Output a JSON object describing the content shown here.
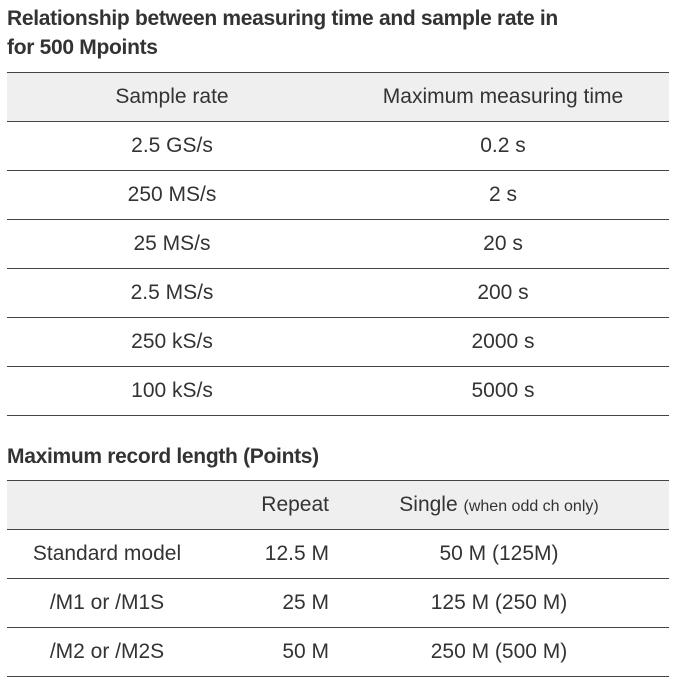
{
  "table1": {
    "title_line1": "Relationship between measuring time and sample rate in",
    "title_line2": "for 500 Mpoints",
    "headers": [
      "Sample rate",
      "Maximum measuring time"
    ],
    "rows": [
      [
        "2.5 GS/s",
        "0.2 s"
      ],
      [
        "250 MS/s",
        "2 s"
      ],
      [
        "25 MS/s",
        "20 s"
      ],
      [
        "2.5 MS/s",
        "200 s"
      ],
      [
        "250 kS/s",
        "2000 s"
      ],
      [
        "100 kS/s",
        "5000 s"
      ]
    ]
  },
  "table2": {
    "title": "Maximum record length (Points)",
    "headers": [
      "",
      "Repeat",
      "Single",
      "(when odd ch only)"
    ],
    "rows": [
      [
        "Standard model",
        "12.5 M",
        "50 M (125M)"
      ],
      [
        "/M1 or /M1S",
        "25 M",
        "125 M (250 M)"
      ],
      [
        "/M2 or /M2S",
        "50 M",
        "250 M (500 M)"
      ]
    ]
  }
}
